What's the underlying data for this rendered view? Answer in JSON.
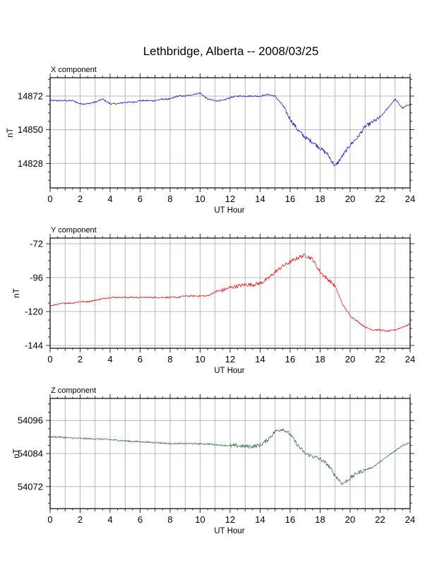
{
  "page_title": "Lethbridge, Alberta -- 2008/03/25",
  "chart_data": [
    {
      "type": "line",
      "title": "X component",
      "xlabel": "UT Hour",
      "ylabel": "nT",
      "xlim": [
        0,
        24
      ],
      "ylim": [
        14812,
        14884
      ],
      "x_ticks": [
        0,
        2,
        4,
        6,
        8,
        10,
        12,
        14,
        16,
        18,
        20,
        22,
        24
      ],
      "y_ticks": [
        14828,
        14850,
        14872
      ],
      "grid": true,
      "color": "#0000dd",
      "series": [
        {
          "x": [
            0,
            0.5,
            1,
            1.5,
            2,
            2.5,
            3,
            3.5,
            4,
            4.5,
            5,
            5.5,
            6,
            6.5,
            7,
            7.5,
            8,
            8.5,
            9,
            9.5,
            10,
            10.5,
            11,
            11.5,
            12,
            12.5,
            13,
            13.5,
            14,
            14.5,
            15,
            15.5,
            16,
            16.5,
            17,
            17.5,
            18,
            18.5,
            19,
            19.5,
            20,
            20.5,
            21,
            21.5,
            22,
            22.5,
            23,
            23.5,
            24
          ],
          "values": [
            14869,
            14869,
            14869,
            14869,
            14867,
            14867,
            14868,
            14870,
            14867,
            14867,
            14868,
            14868,
            14869,
            14869,
            14869,
            14870,
            14870,
            14872,
            14872,
            14873,
            14874,
            14870,
            14869,
            14869,
            14871,
            14872,
            14872,
            14872,
            14872,
            14873,
            14872,
            14866,
            14857,
            14850,
            14845,
            14842,
            14838,
            14834,
            14826,
            14833,
            14840,
            14845,
            14852,
            14855,
            14858,
            14864,
            14870,
            14864,
            14867
          ]
        }
      ]
    },
    {
      "type": "line",
      "title": "Y component",
      "xlabel": "UT Hour",
      "ylabel": "nT",
      "xlim": [
        0,
        24
      ],
      "ylim": [
        -146,
        -68
      ],
      "x_ticks": [
        0,
        2,
        4,
        6,
        8,
        10,
        12,
        14,
        16,
        18,
        20,
        22,
        24
      ],
      "y_ticks": [
        -144,
        -120,
        -96,
        -72
      ],
      "grid": true,
      "color": "#ee0000",
      "series": [
        {
          "x": [
            0,
            0.5,
            1,
            1.5,
            2,
            2.5,
            3,
            3.5,
            4,
            4.5,
            5,
            5.5,
            6,
            6.5,
            7,
            7.5,
            8,
            8.5,
            9,
            9.5,
            10,
            10.5,
            11,
            11.5,
            12,
            12.5,
            13,
            13.5,
            14,
            14.5,
            15,
            15.5,
            16,
            16.5,
            17,
            17.5,
            18,
            18.5,
            19,
            19.5,
            20,
            20.5,
            21,
            21.5,
            22,
            22.5,
            23,
            23.5,
            24
          ],
          "values": [
            -116,
            -115,
            -114,
            -114,
            -113,
            -113,
            -112,
            -111,
            -110,
            -110,
            -110,
            -110,
            -110,
            -110,
            -110,
            -110,
            -110,
            -110,
            -109,
            -109,
            -109,
            -109,
            -106,
            -105,
            -103,
            -102,
            -101,
            -101,
            -100,
            -97,
            -92,
            -88,
            -85,
            -82,
            -80,
            -83,
            -92,
            -97,
            -102,
            -115,
            -123,
            -127,
            -131,
            -133,
            -133,
            -134,
            -133,
            -131,
            -129
          ]
        }
      ]
    },
    {
      "type": "line",
      "title": "Z component",
      "xlabel": "UT Hour",
      "ylabel": "nT",
      "xlim": [
        0,
        24
      ],
      "ylim": [
        54064,
        54104
      ],
      "x_ticks": [
        0,
        2,
        4,
        6,
        8,
        10,
        12,
        14,
        16,
        18,
        20,
        22,
        24
      ],
      "y_ticks": [
        54072,
        54084,
        54096
      ],
      "grid": true,
      "color": "#226633",
      "series": [
        {
          "x": [
            0,
            0.5,
            1,
            1.5,
            2,
            2.5,
            3,
            3.5,
            4,
            4.5,
            5,
            5.5,
            6,
            6.5,
            7,
            7.5,
            8,
            8.5,
            9,
            9.5,
            10,
            10.5,
            11,
            11.5,
            12,
            12.5,
            13,
            13.5,
            14,
            14.5,
            15,
            15.5,
            16,
            16.5,
            17,
            17.5,
            18,
            18.5,
            19,
            19.5,
            20,
            20.5,
            21,
            21.5,
            22,
            22.5,
            23,
            23.5,
            24
          ],
          "values": [
            54090,
            54090,
            54089.8,
            54089.6,
            54089.5,
            54089.4,
            54089.3,
            54089.2,
            54089,
            54088.8,
            54088.6,
            54088.4,
            54088.3,
            54088.1,
            54088,
            54087.8,
            54087.6,
            54087.6,
            54087.6,
            54087.6,
            54087.5,
            54087.5,
            54087.2,
            54087,
            54086.8,
            54086.8,
            54086.6,
            54086.6,
            54087,
            54089,
            54092,
            54093,
            54091,
            54087,
            54084,
            54083,
            54082,
            54080,
            54076,
            54073,
            54075,
            54077,
            54078,
            54079,
            54081,
            54083,
            54085,
            54087,
            54088
          ]
        }
      ]
    }
  ]
}
